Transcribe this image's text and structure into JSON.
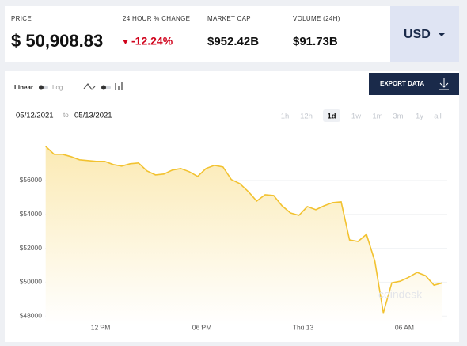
{
  "header": {
    "price_label": "PRICE",
    "price": "$ 50,908.83",
    "change_label": "24 HOUR % CHANGE",
    "change": "-12.24%",
    "market_cap_label": "MARKET CAP",
    "market_cap": "$952.42B",
    "volume_label": "VOLUME (24H)",
    "volume": "$91.73B",
    "currency": "USD"
  },
  "controls": {
    "linear": "Linear",
    "log": "Log",
    "export": "EXPORT DATA",
    "date_from": "05/12/2021",
    "date_sep": "to",
    "date_to": "05/13/2021",
    "ranges": [
      "1h",
      "12h",
      "1d",
      "1w",
      "1m",
      "3m",
      "1y",
      "all"
    ],
    "selected_range": "1d"
  },
  "watermark": "coindesk",
  "chart_data": {
    "type": "line",
    "color": "#f2c230",
    "grid": true,
    "x": [
      "2021-05-12 08:45",
      "2021-05-12 09:15",
      "2021-05-12 09:45",
      "2021-05-12 10:15",
      "2021-05-12 10:45",
      "2021-05-12 11:15",
      "2021-05-12 11:45",
      "2021-05-12 12:15",
      "2021-05-12 12:45",
      "2021-05-12 13:15",
      "2021-05-12 13:45",
      "2021-05-12 14:15",
      "2021-05-12 14:45",
      "2021-05-12 15:15",
      "2021-05-12 15:45",
      "2021-05-12 16:15",
      "2021-05-12 16:45",
      "2021-05-12 17:15",
      "2021-05-12 17:45",
      "2021-05-12 18:15",
      "2021-05-12 18:45",
      "2021-05-12 19:15",
      "2021-05-12 19:45",
      "2021-05-12 20:15",
      "2021-05-12 20:45",
      "2021-05-12 21:15",
      "2021-05-12 21:45",
      "2021-05-12 22:15",
      "2021-05-12 22:45",
      "2021-05-12 23:15",
      "2021-05-12 23:45",
      "2021-05-13 00:15",
      "2021-05-13 00:45",
      "2021-05-13 01:15",
      "2021-05-13 01:45",
      "2021-05-13 02:15",
      "2021-05-13 02:45",
      "2021-05-13 03:15",
      "2021-05-13 03:45",
      "2021-05-13 04:15",
      "2021-05-13 04:45",
      "2021-05-13 05:15",
      "2021-05-13 05:45",
      "2021-05-13 06:15",
      "2021-05-13 06:45",
      "2021-05-13 07:15",
      "2021-05-13 07:45",
      "2021-05-13 08:15"
    ],
    "values": [
      58010,
      57544,
      57544,
      57404,
      57216,
      57170,
      57123,
      57123,
      56936,
      56842,
      56982,
      57029,
      56561,
      56327,
      56374,
      56608,
      56702,
      56515,
      56234,
      56702,
      56889,
      56795,
      56047,
      55813,
      55345,
      54784,
      55158,
      55111,
      54503,
      54082,
      53942,
      54456,
      54269,
      54503,
      54690,
      54737,
      52491,
      52398,
      52819,
      51228,
      48187,
      49965,
      50058,
      50292,
      50573,
      50386,
      49825,
      49965
    ],
    "xlim": [
      "2021-05-12 08:43",
      "2021-05-13 08:32"
    ],
    "xticks": [
      {
        "value": "2021-05-12 12:00",
        "label": "12 PM"
      },
      {
        "value": "2021-05-12 18:00",
        "label": "06 PM"
      },
      {
        "value": "2021-05-13 00:00",
        "label": "Thu 13"
      },
      {
        "value": "2021-05-13 06:00",
        "label": "06 AM"
      }
    ],
    "ylim": [
      47500,
      58700
    ],
    "yticks": [
      {
        "value": 48000,
        "label": "$48000"
      },
      {
        "value": 50000,
        "label": "$50000"
      },
      {
        "value": 52000,
        "label": "$52000"
      },
      {
        "value": 54000,
        "label": "$54000"
      },
      {
        "value": 56000,
        "label": "$56000"
      }
    ]
  }
}
